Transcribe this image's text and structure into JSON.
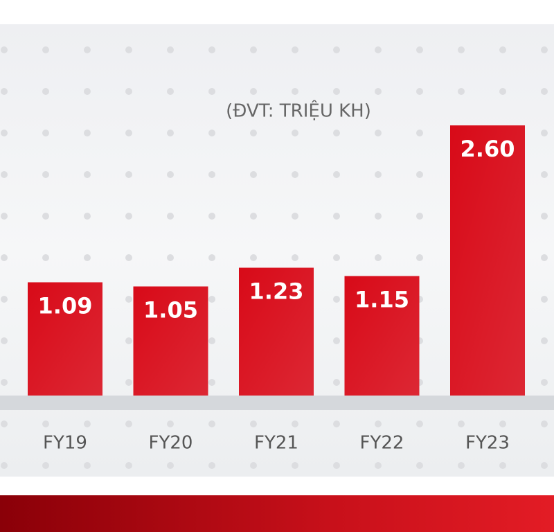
{
  "chart_data": {
    "type": "bar",
    "subtitle": "(ĐVT: TRIỆU KH)",
    "categories": [
      "FY19",
      "FY20",
      "FY21",
      "FY22",
      "FY23"
    ],
    "values": [
      1.09,
      1.05,
      1.23,
      1.15,
      2.6
    ],
    "value_labels": [
      "1.09",
      "1.05",
      "1.23",
      "1.15",
      "2.60"
    ],
    "color": "#d80a18"
  }
}
